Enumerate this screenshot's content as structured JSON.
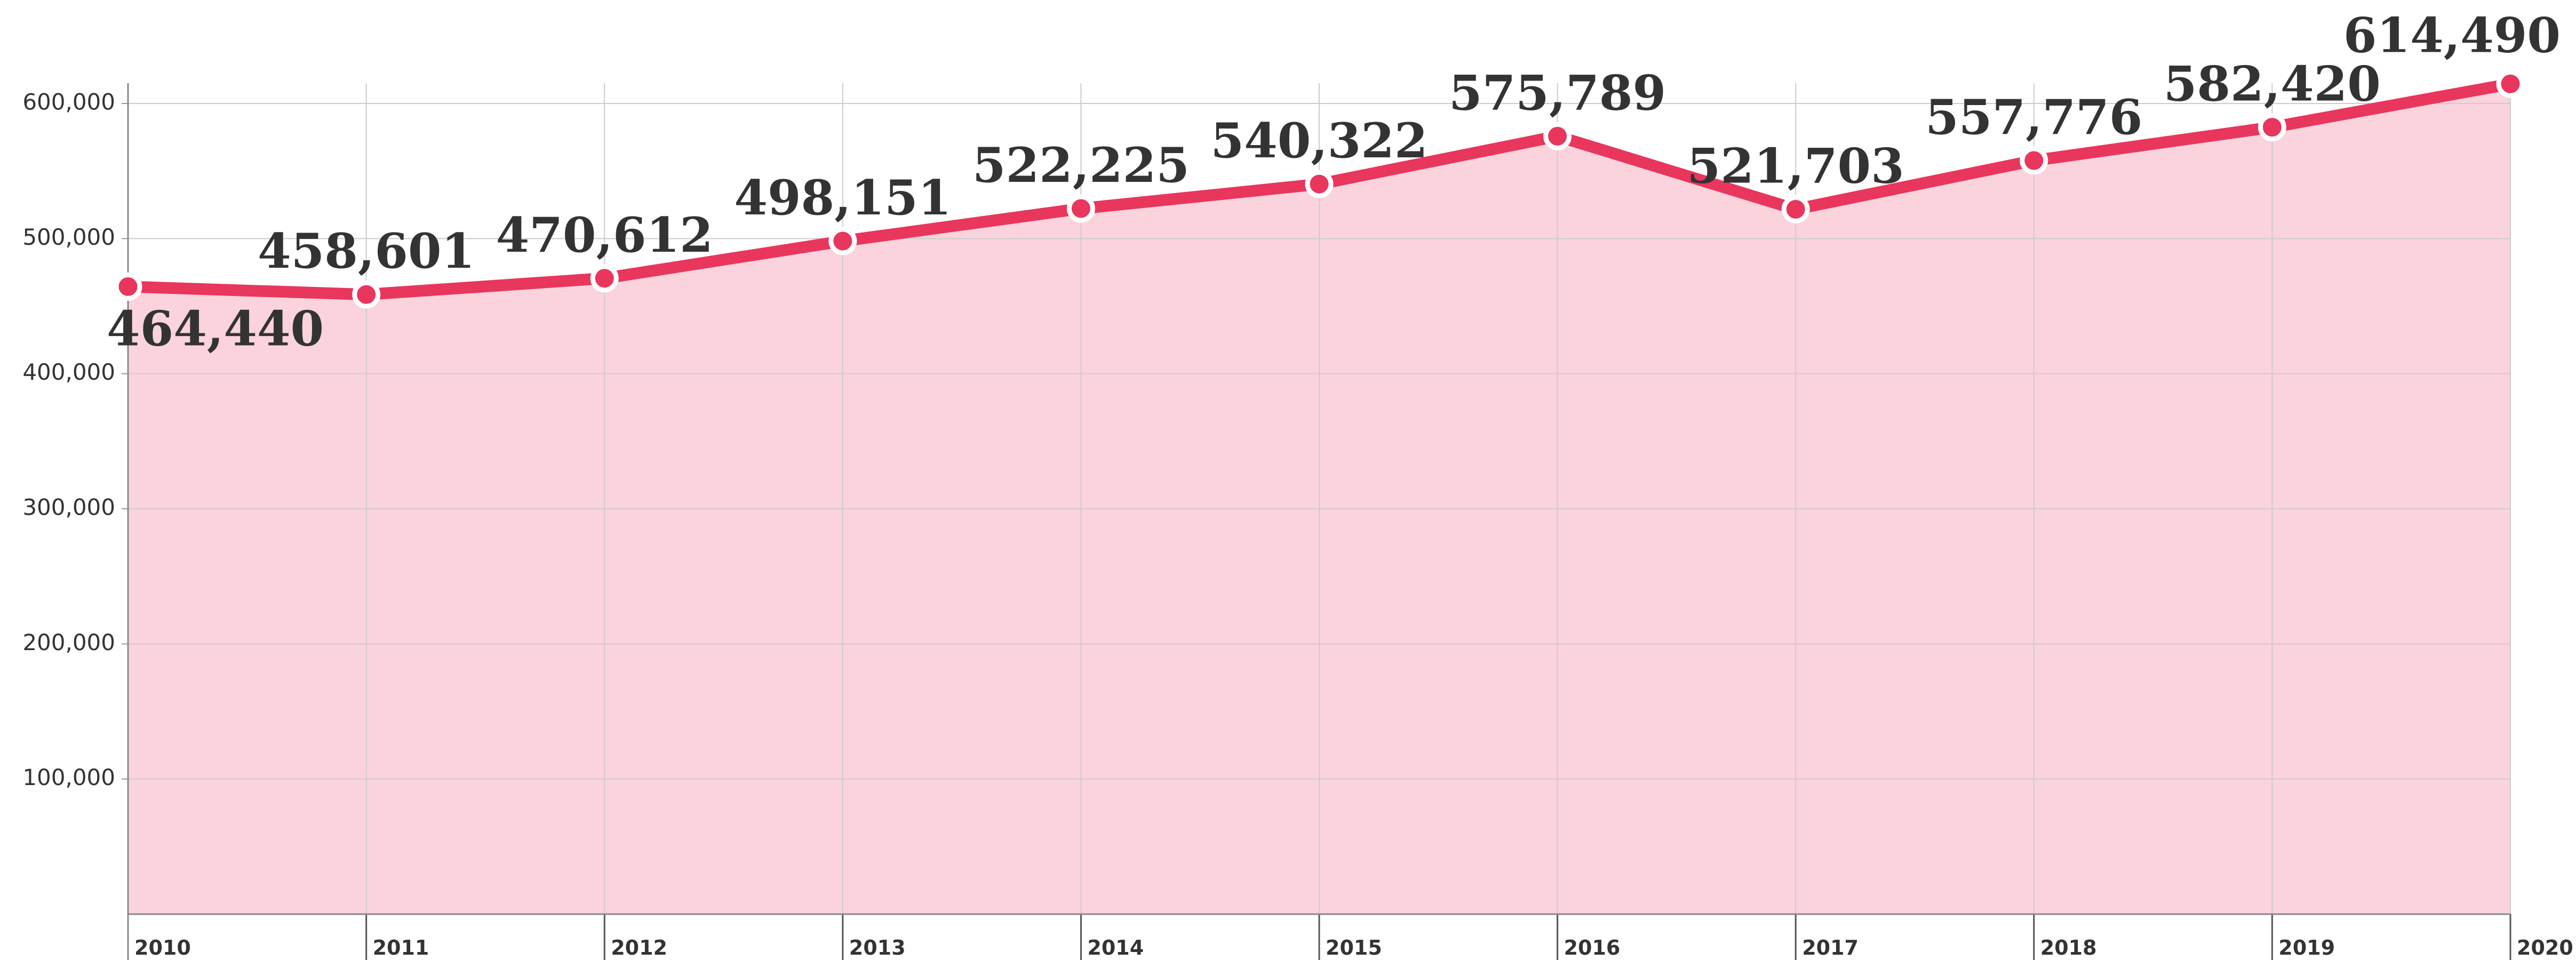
{
  "chart_data": {
    "type": "area",
    "x": [
      2010,
      2011,
      2012,
      2013,
      2014,
      2015,
      2016,
      2017,
      2018,
      2019,
      2020
    ],
    "values": [
      464440,
      458601,
      470612,
      498151,
      522225,
      540322,
      575789,
      521703,
      557776,
      582420,
      614490
    ],
    "value_labels": [
      "464,440",
      "458,601",
      "470,612",
      "498,151",
      "522,225",
      "540,322",
      "575,789",
      "521,703",
      "557,776",
      "582,420",
      "614,490"
    ],
    "color": "#e8365d",
    "fill_color": "#fbd3dc",
    "xlim": [
      2010,
      2020
    ],
    "xticks": [
      2010,
      2011,
      2012,
      2013,
      2014,
      2015,
      2016,
      2017,
      2018,
      2019,
      2020
    ],
    "ylim": [
      0,
      615000
    ],
    "yticks": [
      {
        "value": 100000,
        "label": "100,000"
      },
      {
        "value": 200000,
        "label": "200,000"
      },
      {
        "value": 300000,
        "label": "300,000"
      },
      {
        "value": 400000,
        "label": "400,000"
      },
      {
        "value": 500000,
        "label": "500,000"
      },
      {
        "value": 600000,
        "label": "600,000"
      }
    ],
    "grid": true
  }
}
